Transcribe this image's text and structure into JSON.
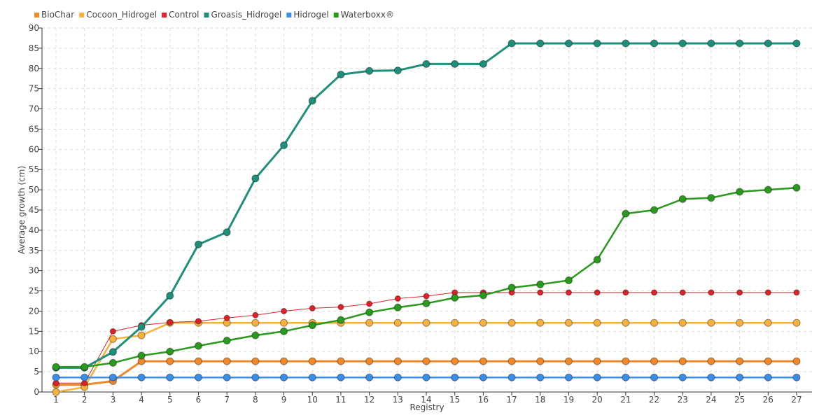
{
  "chart_data": {
    "type": "line",
    "title": "",
    "xlabel": "Registry",
    "ylabel": "Average growth (cm)",
    "legend_position": "top-left",
    "grid": true,
    "ylim": [
      0,
      90
    ],
    "y_ticks": [
      0,
      5,
      10,
      15,
      20,
      25,
      30,
      35,
      40,
      45,
      50,
      55,
      60,
      65,
      70,
      75,
      80,
      85,
      90
    ],
    "categories": [
      "1",
      "2",
      "3",
      "4",
      "5",
      "6",
      "7",
      "8",
      "9",
      "10",
      "11",
      "12",
      "13",
      "14",
      "15",
      "16",
      "17",
      "18",
      "19",
      "20",
      "21",
      "22",
      "23",
      "24",
      "25",
      "26",
      "27"
    ],
    "series": [
      {
        "name": "BioChar",
        "color": "#f0892a",
        "width": 3,
        "marker": 5,
        "values": [
          1.8,
          1.8,
          2.7,
          7.6,
          7.6,
          7.6,
          7.6,
          7.6,
          7.6,
          7.6,
          7.6,
          7.6,
          7.6,
          7.6,
          7.6,
          7.6,
          7.6,
          7.6,
          7.6,
          7.6,
          7.6,
          7.6,
          7.6,
          7.6,
          7.6,
          7.6,
          7.6
        ]
      },
      {
        "name": "Cocoon_Hidrogel",
        "color": "#f6b23c",
        "width": 2.5,
        "marker": 5,
        "values": [
          0,
          1.2,
          13.1,
          14,
          17.1,
          17.1,
          17.1,
          17.1,
          17.1,
          17.1,
          17.1,
          17.1,
          17.1,
          17.1,
          17.1,
          17.1,
          17.1,
          17.1,
          17.1,
          17.1,
          17.1,
          17.1,
          17.1,
          17.1,
          17.1,
          17.1,
          17.1
        ]
      },
      {
        "name": "Control",
        "color": "#e0212a",
        "width": 1,
        "marker": 4,
        "values": [
          2.2,
          2.2,
          15,
          16.5,
          17.2,
          17.5,
          18.3,
          19,
          20,
          20.7,
          21,
          21.8,
          23.1,
          23.7,
          24.6,
          24.6,
          24.6,
          24.6,
          24.6,
          24.6,
          24.6,
          24.6,
          24.6,
          24.6,
          24.6,
          24.6,
          24.6
        ]
      },
      {
        "name": "Groasis_Hidrogel",
        "color": "#1e8f78",
        "width": 3,
        "marker": 5,
        "values": [
          6,
          6,
          9.9,
          16.1,
          23.8,
          36.5,
          39.5,
          52.8,
          61,
          72,
          78.5,
          79.4,
          79.5,
          81.1,
          81.1,
          81.1,
          86.2,
          86.2,
          86.2,
          86.2,
          86.2,
          86.2,
          86.2,
          86.2,
          86.2,
          86.2,
          86.2
        ]
      },
      {
        "name": "Hidrogel",
        "color": "#3b8ee8",
        "width": 2.5,
        "marker": 5,
        "values": [
          3.6,
          3.6,
          3.6,
          3.6,
          3.6,
          3.6,
          3.6,
          3.6,
          3.6,
          3.6,
          3.6,
          3.6,
          3.6,
          3.6,
          3.6,
          3.6,
          3.6,
          3.6,
          3.6,
          3.6,
          3.6,
          3.6,
          3.6,
          3.6,
          3.6,
          3.6,
          3.6
        ]
      },
      {
        "name": "Waterboxx®",
        "color": "#2a9a1e",
        "width": 2.5,
        "marker": 5,
        "values": [
          6.2,
          6.2,
          7.2,
          9,
          10,
          11.4,
          12.7,
          14,
          15,
          16.5,
          17.8,
          19.7,
          20.9,
          21.9,
          23.3,
          23.9,
          25.8,
          26.6,
          27.6,
          32.7,
          44.1,
          45,
          47.7,
          48,
          49.5,
          50,
          50.5
        ]
      }
    ]
  }
}
